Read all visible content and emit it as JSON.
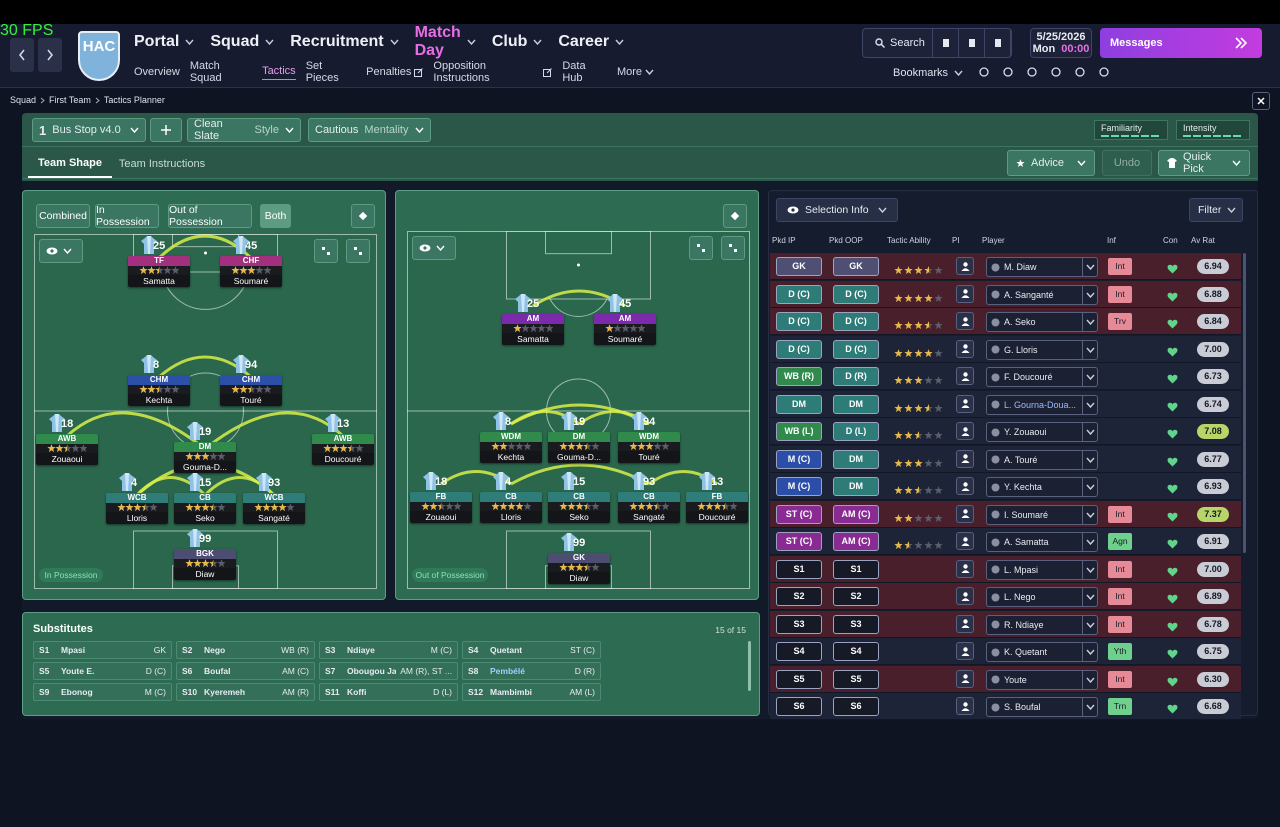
{
  "fps": "30 FPS",
  "header": {
    "badge": "HAC",
    "nav": [
      "Portal",
      "Squad",
      "Recruitment",
      "Match Day",
      "Club",
      "Career"
    ],
    "subnav": [
      "Overview",
      "Match Squad",
      "Tactics",
      "Set Pieces",
      "Penalties",
      "Opposition Instructions",
      "Data Hub",
      "More"
    ],
    "search": "Search",
    "date": "5/25/2026",
    "day": "Mon",
    "time": "00:00",
    "messages": "Messages",
    "bookmarks": "Bookmarks"
  },
  "breadcrumb": [
    "Squad",
    "First Team",
    "Tactics Planner"
  ],
  "toolbar": {
    "slot": "1",
    "tactic": "Bus Stop v4.0",
    "style": "Clean Slate",
    "style_label": "Style",
    "mentality": "Cautious",
    "mentality_label": "Mentality",
    "familiarity": "Familiarity",
    "intensity": "Intensity",
    "tabs": [
      "Team Shape",
      "Team Instructions"
    ],
    "advice": "Advice",
    "undo": "Undo",
    "quick_pick": "Quick Pick"
  },
  "pitch_in": {
    "views": [
      "Combined",
      "In Possession",
      "Out of Possession",
      "Both"
    ],
    "label": "In Possession",
    "players": [
      {
        "number": 25,
        "role": "TF",
        "name": "Samatta",
        "stars": 2.5
      },
      {
        "number": 45,
        "role": "CHF",
        "name": "Soumaré",
        "stars": 3
      },
      {
        "number": 8,
        "role": "CHM",
        "name": "Kechta",
        "stars": 2.5
      },
      {
        "number": 94,
        "role": "CHM",
        "name": "Touré",
        "stars": 2.5
      },
      {
        "number": 18,
        "role": "AWB",
        "name": "Zouaoui",
        "stars": 2.5
      },
      {
        "number": 19,
        "role": "DM",
        "name": "Gouma-D...",
        "stars": 3
      },
      {
        "number": 13,
        "role": "AWB",
        "name": "Doucouré",
        "stars": 3.5
      },
      {
        "number": 4,
        "role": "WCB",
        "name": "Lloris",
        "stars": 3.5
      },
      {
        "number": 15,
        "role": "CB",
        "name": "Seko",
        "stars": 3.5
      },
      {
        "number": 93,
        "role": "WCB",
        "name": "Sangaté",
        "stars": 4
      },
      {
        "number": 99,
        "role": "BGK",
        "name": "Diaw",
        "stars": 3.5
      }
    ]
  },
  "pitch_out": {
    "label": "Out of Possession",
    "players": [
      {
        "number": 25,
        "role": "AM",
        "name": "Samatta",
        "stars": 1
      },
      {
        "number": 45,
        "role": "AM",
        "name": "Soumaré",
        "stars": 1
      },
      {
        "number": 8,
        "role": "WDM",
        "name": "Kechta",
        "stars": 2
      },
      {
        "number": 19,
        "role": "DM",
        "name": "Gouma-D...",
        "stars": 3.5
      },
      {
        "number": 94,
        "role": "WDM",
        "name": "Touré",
        "stars": 3
      },
      {
        "number": 18,
        "role": "FB",
        "name": "Zouaoui",
        "stars": 2.5
      },
      {
        "number": 4,
        "role": "CB",
        "name": "Lloris",
        "stars": 4
      },
      {
        "number": 15,
        "role": "CB",
        "name": "Seko",
        "stars": 3.5
      },
      {
        "number": 93,
        "role": "CB",
        "name": "Sangaté",
        "stars": 3.5
      },
      {
        "number": 13,
        "role": "FB",
        "name": "Doucouré",
        "stars": 3.5
      },
      {
        "number": 99,
        "role": "GK",
        "name": "Diaw",
        "stars": 3.5
      }
    ]
  },
  "subs": {
    "title": "Substitutes",
    "count": "15 of 15",
    "list": [
      {
        "slot": "S1",
        "name": "Mpasi",
        "pos": "GK"
      },
      {
        "slot": "S2",
        "name": "Nego",
        "pos": "WB (R)"
      },
      {
        "slot": "S3",
        "name": "Ndiaye",
        "pos": "M (C)"
      },
      {
        "slot": "S4",
        "name": "Quetant",
        "pos": "ST (C)"
      },
      {
        "slot": "S5",
        "name": "Youte E.",
        "pos": "D (C)"
      },
      {
        "slot": "S6",
        "name": "Boufal",
        "pos": "AM (C)"
      },
      {
        "slot": "S7",
        "name": "Obougou Jacq...",
        "pos": "AM (R), ST ..."
      },
      {
        "slot": "S8",
        "name": "Pembélé",
        "pos": "D (R)"
      },
      {
        "slot": "S9",
        "name": "Ebonog",
        "pos": "M (C)"
      },
      {
        "slot": "S10",
        "name": "Kyeremeh",
        "pos": "AM (R)"
      },
      {
        "slot": "S11",
        "name": "Koffi",
        "pos": "D (L)"
      },
      {
        "slot": "S12",
        "name": "Mambimbi",
        "pos": "AM (L)"
      }
    ]
  },
  "selection": {
    "title": "Selection Info",
    "filter": "Filter",
    "columns": [
      "Pkd IP",
      "Pkd OOP",
      "Tactic Ability",
      "PI",
      "Player",
      "Inf",
      "Con",
      "Av Rat"
    ],
    "rows": [
      {
        "ip": "GK",
        "oop": "GK",
        "stars": 3.5,
        "player": "M. Diaw",
        "inf": "Int",
        "rating": "6.94"
      },
      {
        "ip": "D (C)",
        "oop": "D (C)",
        "stars": 4,
        "player": "A. Sanganté",
        "inf": "Int",
        "rating": "6.88"
      },
      {
        "ip": "D (C)",
        "oop": "D (C)",
        "stars": 3.5,
        "player": "A. Seko",
        "inf": "Trv",
        "rating": "6.84"
      },
      {
        "ip": "D (C)",
        "oop": "D (C)",
        "stars": 4,
        "player": "G. Lloris",
        "inf": null,
        "rating": "7.00"
      },
      {
        "ip": "WB (R)",
        "oop": "D (R)",
        "stars": 3,
        "player": "F. Doucouré",
        "inf": null,
        "rating": "6.73"
      },
      {
        "ip": "DM",
        "oop": "DM",
        "stars": 3.5,
        "player": "L. Gourna-Doua...",
        "inf": null,
        "rating": "6.74"
      },
      {
        "ip": "WB (L)",
        "oop": "D (L)",
        "stars": 2.5,
        "player": "Y. Zouaoui",
        "inf": null,
        "rating": "7.08"
      },
      {
        "ip": "M (C)",
        "oop": "DM",
        "stars": 3,
        "player": "A. Touré",
        "inf": null,
        "rating": "6.77"
      },
      {
        "ip": "M (C)",
        "oop": "DM",
        "stars": 2.5,
        "player": "Y. Kechta",
        "inf": null,
        "rating": "6.93"
      },
      {
        "ip": "ST (C)",
        "oop": "AM (C)",
        "stars": 2,
        "player": "I. Soumaré",
        "inf": "Int",
        "rating": "7.37"
      },
      {
        "ip": "ST (C)",
        "oop": "AM (C)",
        "stars": 1.5,
        "player": "A. Samatta",
        "inf": "Agn",
        "rating": "6.91"
      },
      {
        "ip": "S1",
        "oop": "S1",
        "stars": null,
        "player": "L. Mpasi",
        "inf": "Int",
        "rating": "7.00"
      },
      {
        "ip": "S2",
        "oop": "S2",
        "stars": null,
        "player": "L. Nego",
        "inf": "Int",
        "rating": "6.89"
      },
      {
        "ip": "S3",
        "oop": "S3",
        "stars": null,
        "player": "R. Ndiaye",
        "inf": "Int",
        "rating": "6.78"
      },
      {
        "ip": "S4",
        "oop": "S4",
        "stars": null,
        "player": "K. Quetant",
        "inf": "Yth",
        "rating": "6.75"
      },
      {
        "ip": "S5",
        "oop": "S5",
        "stars": null,
        "player": "Youte",
        "inf": "Int",
        "rating": "6.30"
      },
      {
        "ip": "S6",
        "oop": "S6",
        "stars": null,
        "player": "S. Boufal",
        "inf": "Trn",
        "rating": "6.68"
      }
    ]
  }
}
